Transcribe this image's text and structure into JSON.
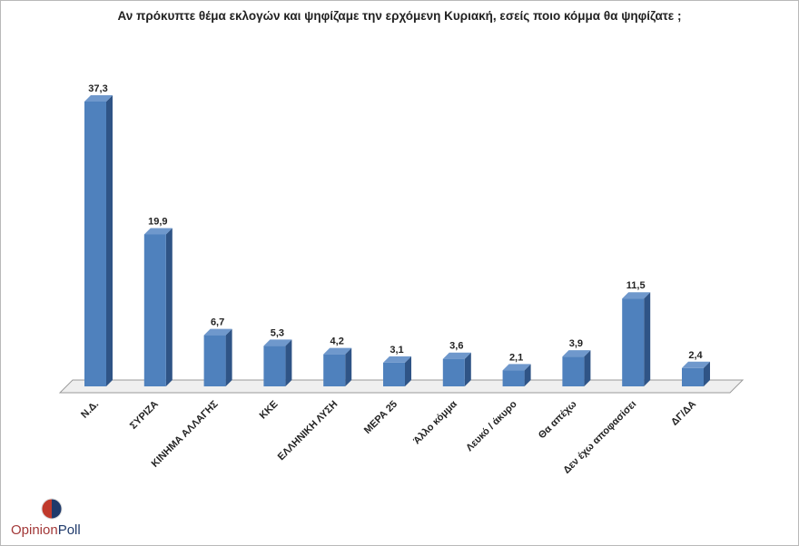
{
  "chart_data": {
    "type": "bar",
    "title": "Αν πρόκυπτε θέμα εκλογών και ψηφίζαμε την ερχόμενη Κυριακή, εσείς ποιο κόμμα θα ψηφίζατε ;",
    "categories": [
      "Ν.Δ.",
      "ΣΥΡΙΖΑ",
      "ΚΙΝΗΜΑ ΑΛΛΑΓΗΣ",
      "ΚΚΕ",
      "ΕΛΛΗΝΙΚΗ ΛΥΣΗ",
      "ΜΕΡΑ 25",
      "Άλλο κόμμα",
      "Λευκό / άκυρο",
      "Θα απέχω",
      "Δεν έχω αποφασίσει",
      "ΔΓ/ΔΑ"
    ],
    "values": [
      37.3,
      19.9,
      6.7,
      5.3,
      4.2,
      3.1,
      3.6,
      2.1,
      3.9,
      11.5,
      2.4
    ],
    "value_labels": [
      "37,3",
      "19,9",
      "6,7",
      "5,3",
      "4,2",
      "3,1",
      "3,6",
      "2,1",
      "3,9",
      "11,5",
      "2,4"
    ],
    "ylim": [
      0,
      37.3
    ],
    "grid": false,
    "colors": {
      "bar_front": "#4f81bd",
      "bar_side": "#2f5486",
      "bar_top": "#6f98cc"
    }
  },
  "logo": {
    "text_part1": "Opinion",
    "text_part2": "Poll"
  }
}
